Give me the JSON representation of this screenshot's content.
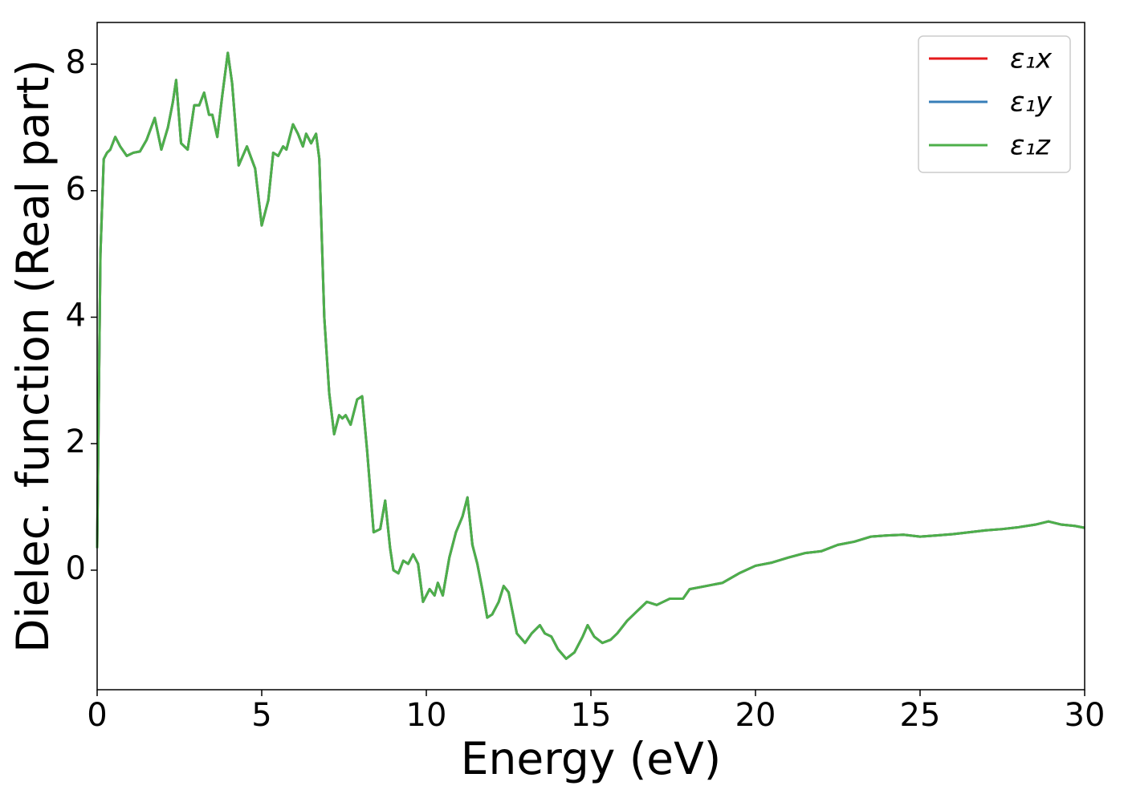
{
  "chart_data": {
    "type": "line",
    "xlabel": "Energy (eV)",
    "ylabel": "Dielec. function (Real part)",
    "xlim": [
      0,
      30
    ],
    "ylim": [
      -1.89,
      8.66
    ],
    "xticks": [
      0,
      5,
      10,
      15,
      20,
      25,
      30
    ],
    "yticks": [
      0,
      2,
      4,
      6,
      8
    ],
    "legend": "upper right",
    "x": [
      0,
      0.1,
      0.2,
      0.3,
      0.4,
      0.55,
      0.7,
      0.9,
      1.1,
      1.3,
      1.5,
      1.75,
      1.95,
      2.15,
      2.3,
      2.4,
      2.55,
      2.75,
      2.95,
      3.1,
      3.25,
      3.4,
      3.5,
      3.65,
      3.8,
      3.97,
      4.1,
      4.3,
      4.55,
      4.8,
      5.0,
      5.2,
      5.35,
      5.5,
      5.65,
      5.75,
      5.95,
      6.1,
      6.25,
      6.35,
      6.5,
      6.65,
      6.75,
      6.9,
      7.05,
      7.2,
      7.35,
      7.45,
      7.55,
      7.7,
      7.9,
      8.05,
      8.2,
      8.4,
      8.6,
      8.75,
      8.9,
      9.0,
      9.15,
      9.3,
      9.45,
      9.6,
      9.75,
      9.9,
      10.1,
      10.25,
      10.35,
      10.5,
      10.7,
      10.9,
      11.1,
      11.25,
      11.4,
      11.55,
      11.7,
      11.85,
      12.0,
      12.2,
      12.35,
      12.5,
      12.75,
      13.0,
      13.2,
      13.45,
      13.6,
      13.8,
      14.0,
      14.25,
      14.5,
      14.75,
      14.9,
      15.1,
      15.35,
      15.6,
      15.8,
      16.1,
      16.4,
      16.7,
      17.0,
      17.4,
      17.8,
      18.0,
      18.5,
      19.0,
      19.5,
      20.0,
      20.5,
      21.0,
      21.5,
      22.0,
      22.5,
      23.0,
      23.5,
      24.0,
      24.5,
      25.0,
      25.5,
      26.0,
      26.5,
      27.0,
      27.5,
      28.0,
      28.5,
      28.9,
      29.3,
      29.7,
      30.0
    ],
    "series": [
      {
        "name": "ε₁x",
        "color": "#e41a1c",
        "values": [
          0.35,
          5.0,
          6.5,
          6.6,
          6.65,
          6.85,
          6.7,
          6.55,
          6.6,
          6.62,
          6.8,
          7.15,
          6.65,
          7.0,
          7.4,
          7.75,
          6.75,
          6.65,
          7.35,
          7.35,
          7.55,
          7.2,
          7.2,
          6.85,
          7.5,
          8.18,
          7.7,
          6.4,
          6.7,
          6.35,
          5.45,
          5.85,
          6.6,
          6.55,
          6.7,
          6.65,
          7.05,
          6.9,
          6.7,
          6.9,
          6.75,
          6.9,
          6.5,
          4.0,
          2.8,
          2.15,
          2.45,
          2.4,
          2.45,
          2.3,
          2.7,
          2.75,
          1.9,
          0.6,
          0.65,
          1.1,
          0.35,
          0.0,
          -0.05,
          0.15,
          0.1,
          0.25,
          0.1,
          -0.5,
          -0.3,
          -0.4,
          -0.2,
          -0.4,
          0.2,
          0.6,
          0.85,
          1.15,
          0.4,
          0.1,
          -0.3,
          -0.75,
          -0.7,
          -0.5,
          -0.25,
          -0.35,
          -1.0,
          -1.15,
          -1.0,
          -0.87,
          -1.0,
          -1.05,
          -1.25,
          -1.4,
          -1.3,
          -1.05,
          -0.87,
          -1.05,
          -1.15,
          -1.1,
          -1.0,
          -0.8,
          -0.65,
          -0.5,
          -0.55,
          -0.45,
          -0.45,
          -0.3,
          -0.25,
          -0.2,
          -0.05,
          0.07,
          0.12,
          0.2,
          0.27,
          0.3,
          0.4,
          0.45,
          0.53,
          0.55,
          0.56,
          0.53,
          0.55,
          0.57,
          0.6,
          0.63,
          0.65,
          0.68,
          0.72,
          0.77,
          0.72,
          0.7,
          0.67
        ]
      },
      {
        "name": "ε₁y",
        "color": "#377eb8",
        "values": [
          0.35,
          5.0,
          6.5,
          6.6,
          6.65,
          6.85,
          6.7,
          6.55,
          6.6,
          6.62,
          6.8,
          7.15,
          6.65,
          7.0,
          7.4,
          7.75,
          6.75,
          6.65,
          7.35,
          7.35,
          7.55,
          7.2,
          7.2,
          6.85,
          7.5,
          8.18,
          7.7,
          6.4,
          6.7,
          6.35,
          5.45,
          5.85,
          6.6,
          6.55,
          6.7,
          6.65,
          7.05,
          6.9,
          6.7,
          6.9,
          6.75,
          6.9,
          6.5,
          4.0,
          2.8,
          2.15,
          2.45,
          2.4,
          2.45,
          2.3,
          2.7,
          2.75,
          1.9,
          0.6,
          0.65,
          1.1,
          0.35,
          0.0,
          -0.05,
          0.15,
          0.1,
          0.25,
          0.1,
          -0.5,
          -0.3,
          -0.4,
          -0.2,
          -0.4,
          0.2,
          0.6,
          0.85,
          1.15,
          0.4,
          0.1,
          -0.3,
          -0.75,
          -0.7,
          -0.5,
          -0.25,
          -0.35,
          -1.0,
          -1.15,
          -1.0,
          -0.87,
          -1.0,
          -1.05,
          -1.25,
          -1.4,
          -1.3,
          -1.05,
          -0.87,
          -1.05,
          -1.15,
          -1.1,
          -1.0,
          -0.8,
          -0.65,
          -0.5,
          -0.55,
          -0.45,
          -0.45,
          -0.3,
          -0.25,
          -0.2,
          -0.05,
          0.07,
          0.12,
          0.2,
          0.27,
          0.3,
          0.4,
          0.45,
          0.53,
          0.55,
          0.56,
          0.53,
          0.55,
          0.57,
          0.6,
          0.63,
          0.65,
          0.68,
          0.72,
          0.77,
          0.72,
          0.7,
          0.67
        ]
      },
      {
        "name": "ε₁z",
        "color": "#4daf4a",
        "values": [
          0.35,
          5.0,
          6.5,
          6.6,
          6.65,
          6.85,
          6.7,
          6.55,
          6.6,
          6.62,
          6.8,
          7.15,
          6.65,
          7.0,
          7.4,
          7.75,
          6.75,
          6.65,
          7.35,
          7.35,
          7.55,
          7.2,
          7.2,
          6.85,
          7.5,
          8.18,
          7.7,
          6.4,
          6.7,
          6.35,
          5.45,
          5.85,
          6.6,
          6.55,
          6.7,
          6.65,
          7.05,
          6.9,
          6.7,
          6.9,
          6.75,
          6.9,
          6.5,
          4.0,
          2.8,
          2.15,
          2.45,
          2.4,
          2.45,
          2.3,
          2.7,
          2.75,
          1.9,
          0.6,
          0.65,
          1.1,
          0.35,
          0.0,
          -0.05,
          0.15,
          0.1,
          0.25,
          0.1,
          -0.5,
          -0.3,
          -0.4,
          -0.2,
          -0.4,
          0.2,
          0.6,
          0.85,
          1.15,
          0.4,
          0.1,
          -0.3,
          -0.75,
          -0.7,
          -0.5,
          -0.25,
          -0.35,
          -1.0,
          -1.15,
          -1.0,
          -0.87,
          -1.0,
          -1.05,
          -1.25,
          -1.4,
          -1.3,
          -1.05,
          -0.87,
          -1.05,
          -1.15,
          -1.1,
          -1.0,
          -0.8,
          -0.65,
          -0.5,
          -0.55,
          -0.45,
          -0.45,
          -0.3,
          -0.25,
          -0.2,
          -0.05,
          0.07,
          0.12,
          0.2,
          0.27,
          0.3,
          0.4,
          0.45,
          0.53,
          0.55,
          0.56,
          0.53,
          0.55,
          0.57,
          0.6,
          0.63,
          0.65,
          0.68,
          0.72,
          0.77,
          0.72,
          0.7,
          0.67
        ]
      }
    ]
  }
}
